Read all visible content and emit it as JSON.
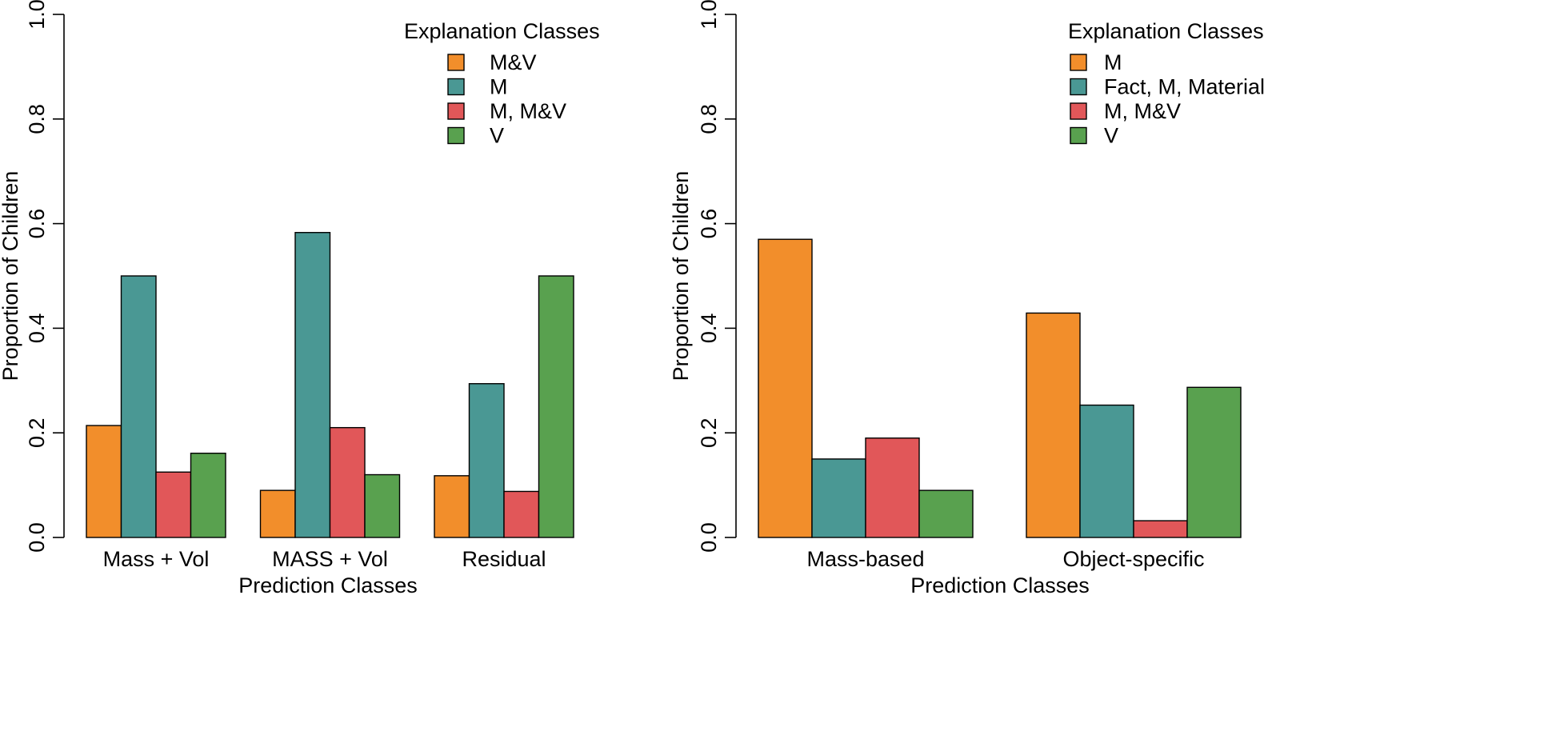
{
  "colors": {
    "orange": "#F28E2B",
    "teal": "#4A9894",
    "red": "#E15759",
    "green": "#59A14F"
  },
  "chart_data": [
    {
      "type": "bar",
      "title": "",
      "xlabel": "Prediction Classes",
      "ylabel": "Proportion of Children",
      "ylim": [
        0,
        1
      ],
      "yticks": [
        "0.0",
        "0.2",
        "0.4",
        "0.6",
        "0.8",
        "1.0"
      ],
      "grid": false,
      "legend_title": "Explanation Classes",
      "legend_position": "top-right",
      "categories": [
        "Mass + Vol",
        "MASS + Vol",
        "Residual"
      ],
      "series": [
        {
          "name": "M&V",
          "color": "#F28E2B",
          "values": [
            0.214,
            0.09,
            0.118
          ]
        },
        {
          "name": "M",
          "color": "#4A9894",
          "values": [
            0.5,
            0.583,
            0.294
          ]
        },
        {
          "name": "M, M&V",
          "color": "#E15759",
          "values": [
            0.125,
            0.21,
            0.088
          ]
        },
        {
          "name": "V",
          "color": "#59A14F",
          "values": [
            0.161,
            0.12,
            0.5
          ]
        }
      ]
    },
    {
      "type": "bar",
      "title": "",
      "xlabel": "Prediction Classes",
      "ylabel": "Proportion of Children",
      "ylim": [
        0,
        1
      ],
      "yticks": [
        "0.0",
        "0.2",
        "0.4",
        "0.6",
        "0.8",
        "1.0"
      ],
      "grid": false,
      "legend_title": "Explanation Classes",
      "legend_position": "top-right",
      "categories": [
        "Mass-based",
        "Object-specific"
      ],
      "series": [
        {
          "name": "M",
          "color": "#F28E2B",
          "values": [
            0.57,
            0.429
          ]
        },
        {
          "name": "Fact, M, Material",
          "color": "#4A9894",
          "values": [
            0.15,
            0.253
          ]
        },
        {
          "name": "M, M&V",
          "color": "#E15759",
          "values": [
            0.19,
            0.032
          ]
        },
        {
          "name": "V",
          "color": "#59A14F",
          "values": [
            0.09,
            0.287
          ]
        }
      ]
    }
  ]
}
